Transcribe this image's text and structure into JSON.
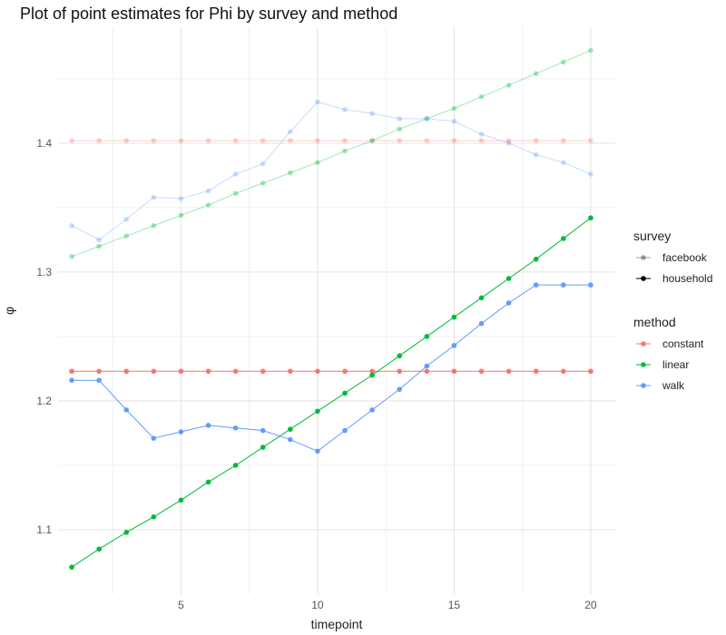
{
  "chart_data": {
    "type": "line",
    "title": "Plot of point estimates for Phi by survey and method",
    "xlabel": "timepoint",
    "ylabel": "φ",
    "xlim": [
      0.5,
      20.9
    ],
    "ylim": [
      1.05,
      1.49
    ],
    "x_ticks": [
      5,
      10,
      15,
      20
    ],
    "y_ticks": [
      1.1,
      1.2,
      1.3,
      1.4
    ],
    "grid": true,
    "legend_position": "right",
    "x": [
      1,
      2,
      3,
      4,
      5,
      6,
      7,
      8,
      9,
      10,
      11,
      12,
      13,
      14,
      15,
      16,
      17,
      18,
      19,
      20
    ],
    "legends": [
      {
        "title": "survey",
        "entries": [
          {
            "label": "facebook",
            "opacity": 0.35
          },
          {
            "label": "household",
            "opacity": 1.0
          }
        ]
      },
      {
        "title": "method",
        "entries": [
          {
            "label": "constant",
            "color": "#F8766D"
          },
          {
            "label": "linear",
            "color": "#00BA38"
          },
          {
            "label": "walk",
            "color": "#619CFF"
          }
        ]
      }
    ],
    "series": [
      {
        "survey": "facebook",
        "method": "constant",
        "color": "#F8766D",
        "opacity": 0.35,
        "values": [
          1.402,
          1.402,
          1.402,
          1.402,
          1.402,
          1.402,
          1.402,
          1.402,
          1.402,
          1.402,
          1.402,
          1.402,
          1.402,
          1.402,
          1.402,
          1.402,
          1.402,
          1.402,
          1.402,
          1.402
        ]
      },
      {
        "survey": "facebook",
        "method": "linear",
        "color": "#00BA38",
        "opacity": 0.35,
        "values": [
          1.312,
          1.32,
          1.328,
          1.336,
          1.344,
          1.352,
          1.361,
          1.369,
          1.377,
          1.385,
          1.394,
          1.402,
          1.411,
          1.419,
          1.427,
          1.436,
          1.445,
          1.454,
          1.463,
          1.472
        ]
      },
      {
        "survey": "facebook",
        "method": "walk",
        "color": "#619CFF",
        "opacity": 0.35,
        "values": [
          1.336,
          1.325,
          1.341,
          1.358,
          1.357,
          1.363,
          1.376,
          1.384,
          1.409,
          1.432,
          1.426,
          1.423,
          1.419,
          1.419,
          1.417,
          1.407,
          1.4,
          1.391,
          1.385,
          1.376
        ]
      },
      {
        "survey": "household",
        "method": "constant",
        "color": "#F8766D",
        "opacity": 1.0,
        "values": [
          1.223,
          1.223,
          1.223,
          1.223,
          1.223,
          1.223,
          1.223,
          1.223,
          1.223,
          1.223,
          1.223,
          1.223,
          1.223,
          1.223,
          1.223,
          1.223,
          1.223,
          1.223,
          1.223,
          1.223
        ]
      },
      {
        "survey": "household",
        "method": "linear",
        "color": "#00BA38",
        "opacity": 1.0,
        "values": [
          1.071,
          1.085,
          1.098,
          1.11,
          1.123,
          1.137,
          1.15,
          1.164,
          1.178,
          1.192,
          1.206,
          1.22,
          1.235,
          1.25,
          1.265,
          1.28,
          1.295,
          1.31,
          1.326,
          1.342
        ]
      },
      {
        "survey": "household",
        "method": "walk",
        "color": "#619CFF",
        "opacity": 1.0,
        "values": [
          1.216,
          1.216,
          1.193,
          1.171,
          1.176,
          1.181,
          1.179,
          1.177,
          1.17,
          1.161,
          1.177,
          1.193,
          1.209,
          1.227,
          1.243,
          1.26,
          1.276,
          1.29,
          1.29,
          1.29
        ]
      }
    ]
  }
}
